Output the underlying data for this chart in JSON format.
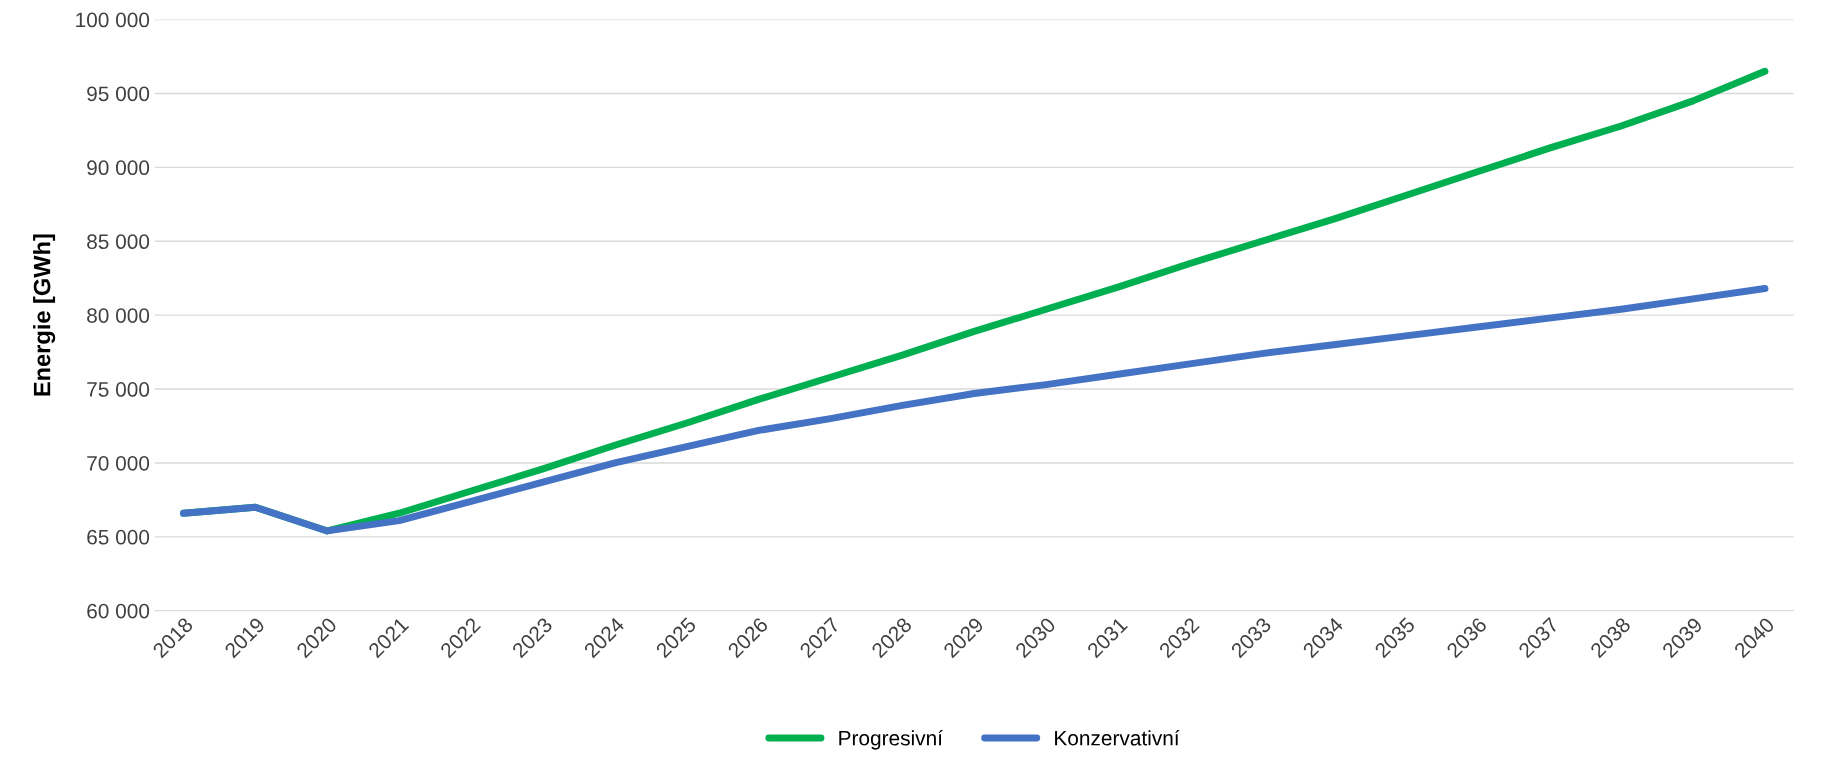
{
  "chart_data": {
    "type": "line",
    "ylabel": "Energie [GWh]",
    "categories": [
      "2018",
      "2019",
      "2020",
      "2021",
      "2022",
      "2023",
      "2024",
      "2025",
      "2026",
      "2027",
      "2028",
      "2029",
      "2030",
      "2031",
      "2032",
      "2033",
      "2034",
      "2035",
      "2036",
      "2037",
      "2038",
      "2039",
      "2040"
    ],
    "series": [
      {
        "name": "Progresivní",
        "color": "#00b050",
        "values": [
          66600,
          67000,
          65400,
          66600,
          68100,
          69600,
          71200,
          72700,
          74300,
          75800,
          77300,
          78900,
          80400,
          81900,
          83500,
          85000,
          86500,
          88100,
          89700,
          91300,
          92800,
          94500,
          96500
        ]
      },
      {
        "name": "Konzervativní",
        "color": "#4472c4",
        "values": [
          66600,
          67000,
          65400,
          66100,
          67400,
          68700,
          70000,
          71100,
          72200,
          73000,
          73900,
          74700,
          75300,
          76000,
          76700,
          77400,
          78000,
          78600,
          79200,
          79800,
          80400,
          81100,
          81800
        ]
      }
    ],
    "ylim": [
      60000,
      100000
    ],
    "yticks": [
      {
        "value": 60000,
        "label": "60 000"
      },
      {
        "value": 65000,
        "label": "65 000"
      },
      {
        "value": 70000,
        "label": "70 000"
      },
      {
        "value": 75000,
        "label": "75 000"
      },
      {
        "value": 80000,
        "label": "80 000"
      },
      {
        "value": 85000,
        "label": "85 000"
      },
      {
        "value": 90000,
        "label": "90 000"
      },
      {
        "value": 95000,
        "label": "95 000"
      },
      {
        "value": 100000,
        "label": "100 000"
      }
    ],
    "grid": "y",
    "legend": "bottom",
    "marker": "none",
    "line_style": "solid"
  }
}
